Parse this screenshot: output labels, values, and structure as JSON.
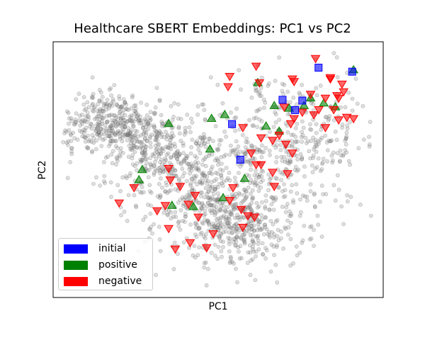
{
  "chart_data": {
    "type": "scatter",
    "title": "Healthcare SBERT Embeddings: PC1 vs PC2",
    "xlabel": "PC1",
    "ylabel": "PC2",
    "xlim": [
      0,
      100
    ],
    "ylim": [
      0,
      100
    ],
    "ticks_visible": false,
    "grid": false,
    "legend_position": "lower-left",
    "background_points": {
      "name": "",
      "color": "#808080",
      "description_count": 1800
    },
    "series": [
      {
        "name": "initial",
        "color": "#0000ff",
        "marker": "square",
        "points": [
          [
            90.6,
            88.3
          ],
          [
            80.4,
            89.9
          ],
          [
            69.5,
            77.3
          ],
          [
            73.3,
            73.3
          ],
          [
            54.2,
            67.8
          ],
          [
            56.7,
            53.9
          ],
          [
            75.5,
            77.0
          ]
        ]
      },
      {
        "name": "positive",
        "color": "#008000",
        "marker": "triangle-up",
        "points": [
          [
            62.0,
            84.0
          ],
          [
            91.0,
            89.0
          ],
          [
            48.0,
            70.0
          ],
          [
            52.0,
            71.5
          ],
          [
            67.0,
            75.0
          ],
          [
            71.5,
            74.0
          ],
          [
            78.0,
            78.0
          ],
          [
            76.0,
            75.0
          ],
          [
            82.0,
            76.0
          ],
          [
            85.5,
            74.5
          ],
          [
            64.5,
            67.0
          ],
          [
            68.5,
            65.0
          ],
          [
            47.5,
            58.0
          ],
          [
            35.0,
            68.0
          ],
          [
            27.0,
            50.0
          ],
          [
            26.0,
            46.0
          ],
          [
            58.0,
            46.5
          ],
          [
            51.5,
            39.0
          ],
          [
            36.0,
            36.0
          ],
          [
            42.5,
            35.5
          ]
        ]
      },
      {
        "name": "negative",
        "color": "#ff0000",
        "marker": "triangle-down",
        "points": [
          [
            79.5,
            93.5
          ],
          [
            61.5,
            90.5
          ],
          [
            53.5,
            86.5
          ],
          [
            53.0,
            82.5
          ],
          [
            62.5,
            84.0
          ],
          [
            72.5,
            85.5
          ],
          [
            73.0,
            84.5
          ],
          [
            84.0,
            85.5
          ],
          [
            87.5,
            83.5
          ],
          [
            88.0,
            80.5
          ],
          [
            86.0,
            79.0
          ],
          [
            78.0,
            79.5
          ],
          [
            82.5,
            78.0
          ],
          [
            86.5,
            78.0
          ],
          [
            70.0,
            74.5
          ],
          [
            75.5,
            72.5
          ],
          [
            73.0,
            70.0
          ],
          [
            72.0,
            68.0
          ],
          [
            79.0,
            71.5
          ],
          [
            80.5,
            73.5
          ],
          [
            85.0,
            73.5
          ],
          [
            86.5,
            69.5
          ],
          [
            89.0,
            70.5
          ],
          [
            91.0,
            70.0
          ],
          [
            82.5,
            66.5
          ],
          [
            57.5,
            66.5
          ],
          [
            66.5,
            61.5
          ],
          [
            63.0,
            62.5
          ],
          [
            68.5,
            63.5
          ],
          [
            70.5,
            60.0
          ],
          [
            72.5,
            56.5
          ],
          [
            60.0,
            56.5
          ],
          [
            61.5,
            52.0
          ],
          [
            66.5,
            49.0
          ],
          [
            71.0,
            48.5
          ],
          [
            67.0,
            43.5
          ],
          [
            35.0,
            50.5
          ],
          [
            35.5,
            46.0
          ],
          [
            38.5,
            43.5
          ],
          [
            41.0,
            36.5
          ],
          [
            35.0,
            27.0
          ],
          [
            31.5,
            34.0
          ],
          [
            37.0,
            19.0
          ],
          [
            44.0,
            31.5
          ],
          [
            48.5,
            25.0
          ],
          [
            41.5,
            21.5
          ],
          [
            46.5,
            19.5
          ],
          [
            61.0,
            31.5
          ],
          [
            57.0,
            34.5
          ],
          [
            59.0,
            32.0
          ],
          [
            57.5,
            27.5
          ],
          [
            24.5,
            43.0
          ],
          [
            20.0,
            37.0
          ],
          [
            34.0,
            36.0
          ],
          [
            53.5,
            38.0
          ],
          [
            43.0,
            40.0
          ],
          [
            54.5,
            43.0
          ],
          [
            63.0,
            52.0
          ],
          [
            84.0,
            86.0
          ]
        ]
      }
    ]
  }
}
